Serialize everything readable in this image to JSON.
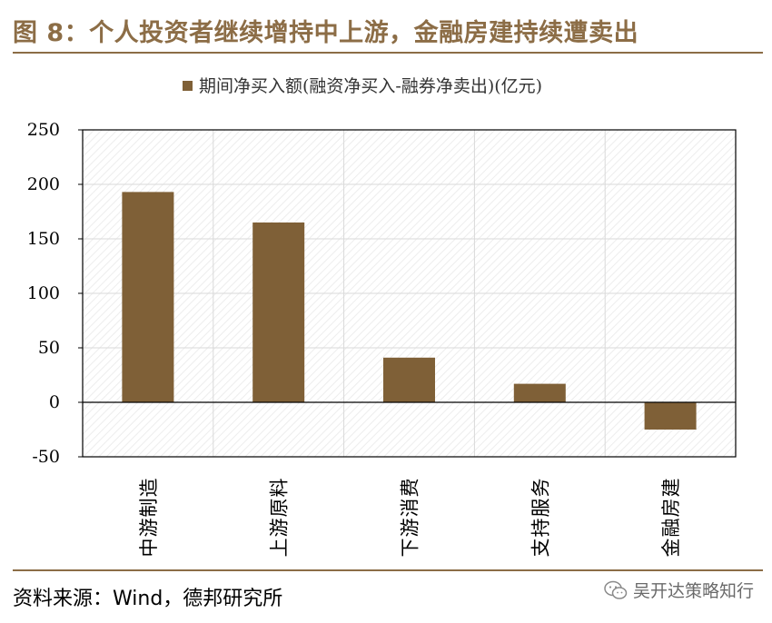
{
  "figure": {
    "title": "图 8：个人投资者继续增持中上游，金融房建持续遭卖出",
    "source": "资料来源：Wind，德邦研究所",
    "watermark": "吴开达策略知行",
    "watermark_icon": "wechat-icon",
    "accent_color": "#8c6d46"
  },
  "chart_data": {
    "type": "bar",
    "categories": [
      "中游制造",
      "上游原料",
      "下游消费",
      "支持服务",
      "金融房建"
    ],
    "series": [
      {
        "name": "期间净买入额(融资净买入-融券净卖出)(亿元)",
        "values": [
          193,
          165,
          41,
          17,
          -25
        ],
        "color": "#7f6037"
      }
    ],
    "ylim": [
      -50,
      250
    ],
    "yticks": [
      "250",
      "200",
      "150",
      "100",
      "50",
      "0",
      "-50"
    ],
    "grid": true,
    "legend_position": "top-center",
    "xlabel": "",
    "ylabel": ""
  }
}
